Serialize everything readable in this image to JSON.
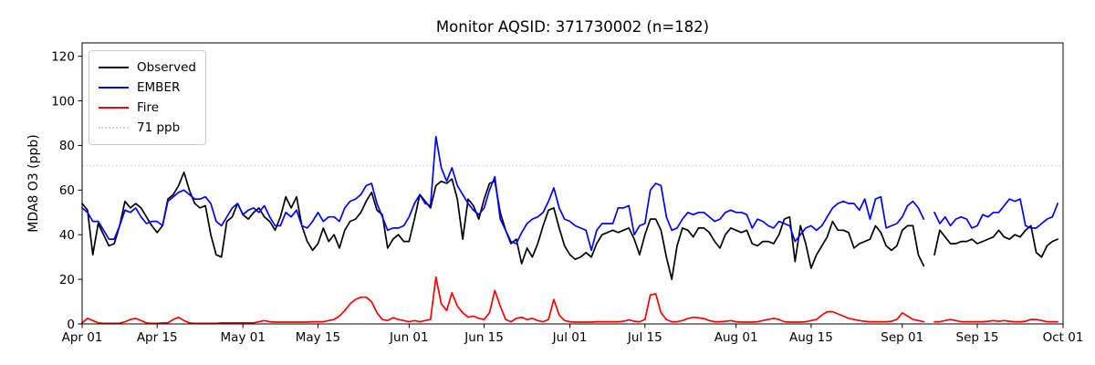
{
  "figure": {
    "title": "Monitor AQSID: 371730002 (n=182)",
    "ylabel": "MDA8 O3 (ppb)"
  },
  "legend": {
    "position": "upper left",
    "items": [
      {
        "label": "Observed",
        "color": "#000000",
        "style": "solid"
      },
      {
        "label": "EMBER",
        "color": "#0000ff",
        "style": "solid"
      },
      {
        "label": "Fire",
        "color": "#ff0000",
        "style": "solid"
      },
      {
        "label": "71 ppb",
        "color": "#d3d3d3",
        "style": "dotted"
      }
    ]
  },
  "chart_data": {
    "type": "line",
    "title": "Monitor AQSID: 371730002 (n=182)",
    "xlabel": "",
    "ylabel": "MDA8 O3 (ppb)",
    "ylim": [
      0,
      126
    ],
    "yticks": [
      0,
      20,
      40,
      60,
      80,
      100,
      120
    ],
    "ytick_labels": [
      "0",
      "20",
      "40",
      "60",
      "80",
      "100",
      "120"
    ],
    "x_is_daily_dates": true,
    "x_start_label": "Apr 01",
    "x_end_label": "Oct 01",
    "n_days": 183,
    "n_points": 182,
    "x_tick_days": [
      0,
      14,
      30,
      44,
      61,
      75,
      91,
      105,
      122,
      136,
      153,
      167,
      183
    ],
    "x_tick_labels": [
      "Apr 01",
      "Apr 15",
      "May 01",
      "May 15",
      "Jun 01",
      "Jun 15",
      "Jul 01",
      "Jul 15",
      "Aug 01",
      "Aug 15",
      "Sep 01",
      "Sep 15",
      "Oct 01"
    ],
    "grid": false,
    "legend_position": "upper left",
    "threshold": {
      "value": 71,
      "label": "71 ppb",
      "color": "#d3d3d3",
      "linestyle": "dotted"
    },
    "series": [
      {
        "name": "Observed",
        "color": "#000000",
        "values": [
          54,
          51,
          31,
          45,
          40,
          35,
          36,
          44,
          55,
          52,
          54,
          52,
          48,
          44,
          41,
          44,
          56,
          58,
          62,
          68,
          60,
          54,
          52,
          53,
          40,
          31,
          30,
          46,
          48,
          54,
          49,
          47,
          50,
          52,
          48,
          46,
          42,
          48,
          57,
          52,
          57,
          44,
          37,
          33,
          36,
          43,
          37,
          40,
          34,
          42,
          46,
          47,
          50,
          55,
          59,
          51,
          49,
          34,
          38,
          40,
          37,
          37,
          47,
          58,
          55,
          52,
          62,
          64,
          63,
          65,
          56,
          38,
          56,
          53,
          47,
          56,
          63,
          64,
          50,
          42,
          36,
          38,
          27,
          34,
          30,
          36,
          44,
          51,
          52,
          43,
          35,
          31,
          29,
          30,
          32,
          30,
          36,
          40,
          41,
          42,
          41,
          42,
          43,
          38,
          31,
          40,
          47,
          47,
          42,
          30,
          20,
          35,
          43,
          42,
          39,
          43,
          43,
          41,
          37,
          34,
          40,
          43,
          42,
          41,
          42,
          36,
          35,
          37,
          37,
          36,
          40,
          47,
          48,
          28,
          44,
          36,
          25,
          31,
          35,
          39,
          46,
          42,
          42,
          41,
          34,
          36,
          37,
          38,
          44,
          41,
          35,
          33,
          35,
          42,
          44,
          44,
          31,
          26,
          null,
          31,
          42,
          39,
          36,
          36,
          37,
          37,
          38,
          36,
          37,
          38,
          39,
          42,
          39,
          38,
          40,
          39,
          42,
          44,
          32,
          30,
          35,
          37,
          38
        ]
      },
      {
        "name": "EMBER",
        "color": "#0000ff",
        "values": [
          52,
          50,
          46,
          46,
          42,
          38,
          38,
          44,
          51,
          50,
          52,
          48,
          45,
          46,
          46,
          44,
          55,
          57,
          59,
          60,
          58,
          56,
          56,
          57,
          54,
          46,
          44,
          48,
          52,
          54,
          49,
          51,
          52,
          50,
          53,
          48,
          44,
          44,
          50,
          48,
          51,
          44,
          43,
          46,
          50,
          46,
          48,
          48,
          46,
          52,
          55,
          56,
          58,
          62,
          63,
          54,
          48,
          42,
          43,
          43,
          44,
          48,
          54,
          58,
          54,
          53,
          84,
          70,
          64,
          70,
          62,
          58,
          54,
          51,
          49,
          52,
          60,
          66,
          47,
          42,
          37,
          36,
          41,
          45,
          47,
          48,
          50,
          55,
          61,
          52,
          47,
          46,
          44,
          43,
          42,
          33,
          42,
          45,
          45,
          45,
          52,
          52,
          53,
          40,
          44,
          45,
          60,
          63,
          62,
          48,
          42,
          43,
          47,
          50,
          49,
          50,
          50,
          48,
          46,
          47,
          50,
          51,
          50,
          50,
          49,
          43,
          47,
          46,
          44,
          43,
          46,
          45,
          44,
          37,
          40,
          43,
          44,
          42,
          44,
          48,
          52,
          54,
          55,
          54,
          54,
          51,
          56,
          47,
          56,
          57,
          43,
          44,
          45,
          48,
          53,
          55,
          52,
          47,
          null,
          50,
          45,
          48,
          44,
          47,
          48,
          47,
          43,
          44,
          49,
          48,
          50,
          50,
          53,
          56,
          55,
          56,
          44,
          43,
          43,
          45,
          47,
          48,
          54
        ]
      },
      {
        "name": "Fire",
        "color": "#ff0000",
        "values": [
          0.5,
          2.5,
          1.5,
          0.5,
          0.3,
          0.3,
          0.3,
          0.3,
          1,
          2,
          2.5,
          1.5,
          0.5,
          0.3,
          0.3,
          0.5,
          0.5,
          2,
          3,
          1.5,
          0.5,
          0.3,
          0.3,
          0.3,
          0.3,
          0.3,
          0.5,
          0.5,
          0.5,
          0.5,
          0.5,
          0.5,
          0.5,
          1,
          1.5,
          1,
          0.8,
          0.8,
          0.8,
          0.8,
          0.8,
          0.8,
          0.8,
          1,
          1,
          1,
          1.5,
          2,
          3.5,
          6,
          9,
          11,
          12,
          12,
          10,
          5,
          2,
          1.5,
          2.8,
          2,
          1.5,
          1,
          1.5,
          1,
          1.5,
          2,
          21,
          9,
          6,
          14,
          8,
          5,
          3,
          3.5,
          2.5,
          2,
          5,
          15,
          8,
          2,
          1,
          2.5,
          3,
          2,
          2.5,
          1.5,
          1,
          2,
          11,
          4,
          1.5,
          1,
          0.8,
          0.8,
          0.8,
          0.8,
          1,
          1,
          1,
          1,
          1,
          1.2,
          1.8,
          1.2,
          1,
          2,
          13,
          13.5,
          5,
          2,
          1,
          1,
          1.5,
          2.4,
          3,
          2.8,
          2.4,
          1.5,
          1,
          1,
          1.2,
          1.5,
          1,
          0.8,
          0.8,
          0.8,
          1,
          1.5,
          2,
          2.5,
          2,
          1,
          0.8,
          0.8,
          0.8,
          1,
          1.5,
          2,
          4,
          5.5,
          5.5,
          4.5,
          3.5,
          2.5,
          2,
          1.5,
          1.2,
          1,
          1,
          1,
          1,
          1.2,
          2,
          5,
          3.5,
          2,
          1.5,
          1,
          null,
          1,
          1,
          1.5,
          2,
          1.5,
          1,
          1,
          1,
          1,
          1,
          1.2,
          1.5,
          1.2,
          1.5,
          1.2,
          1,
          1,
          1.2,
          2,
          2,
          1.5,
          1,
          1,
          1
        ]
      }
    ]
  }
}
